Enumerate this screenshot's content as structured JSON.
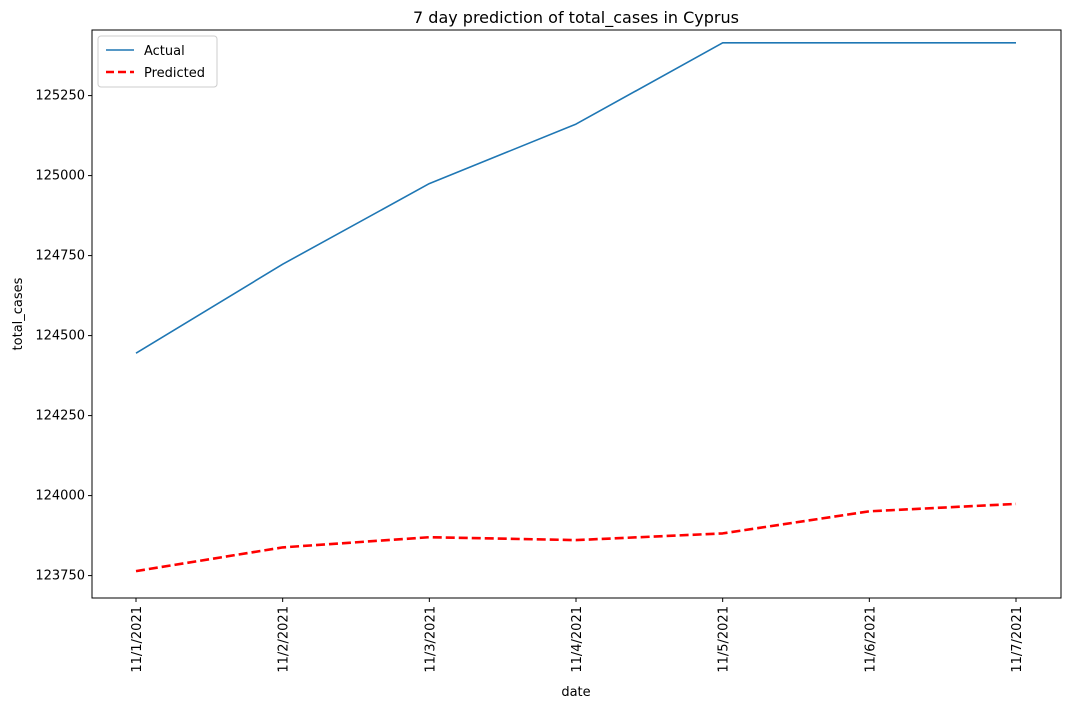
{
  "chart_data": {
    "type": "line",
    "title": "7 day prediction of total_cases in Cyprus",
    "xlabel": "date",
    "ylabel": "total_cases",
    "categories": [
      "11/1/2021",
      "11/2/2021",
      "11/3/2021",
      "11/4/2021",
      "11/5/2021",
      "11/6/2021",
      "11/7/2021"
    ],
    "ylim": [
      123680,
      125455
    ],
    "yticks": [
      123750,
      124000,
      124250,
      124500,
      124750,
      125000,
      125250
    ],
    "grid": false,
    "legend_position": "top-left",
    "series": [
      {
        "name": "Actual",
        "color": "#1f77b4",
        "style": "solid",
        "values": [
          124445,
          124723,
          124975,
          125161,
          125415,
          125415,
          125415
        ]
      },
      {
        "name": "Predicted",
        "color": "#ff0000",
        "style": "dashed",
        "values": [
          123764,
          123838,
          123870,
          123861,
          123882,
          123951,
          123974
        ]
      }
    ]
  }
}
